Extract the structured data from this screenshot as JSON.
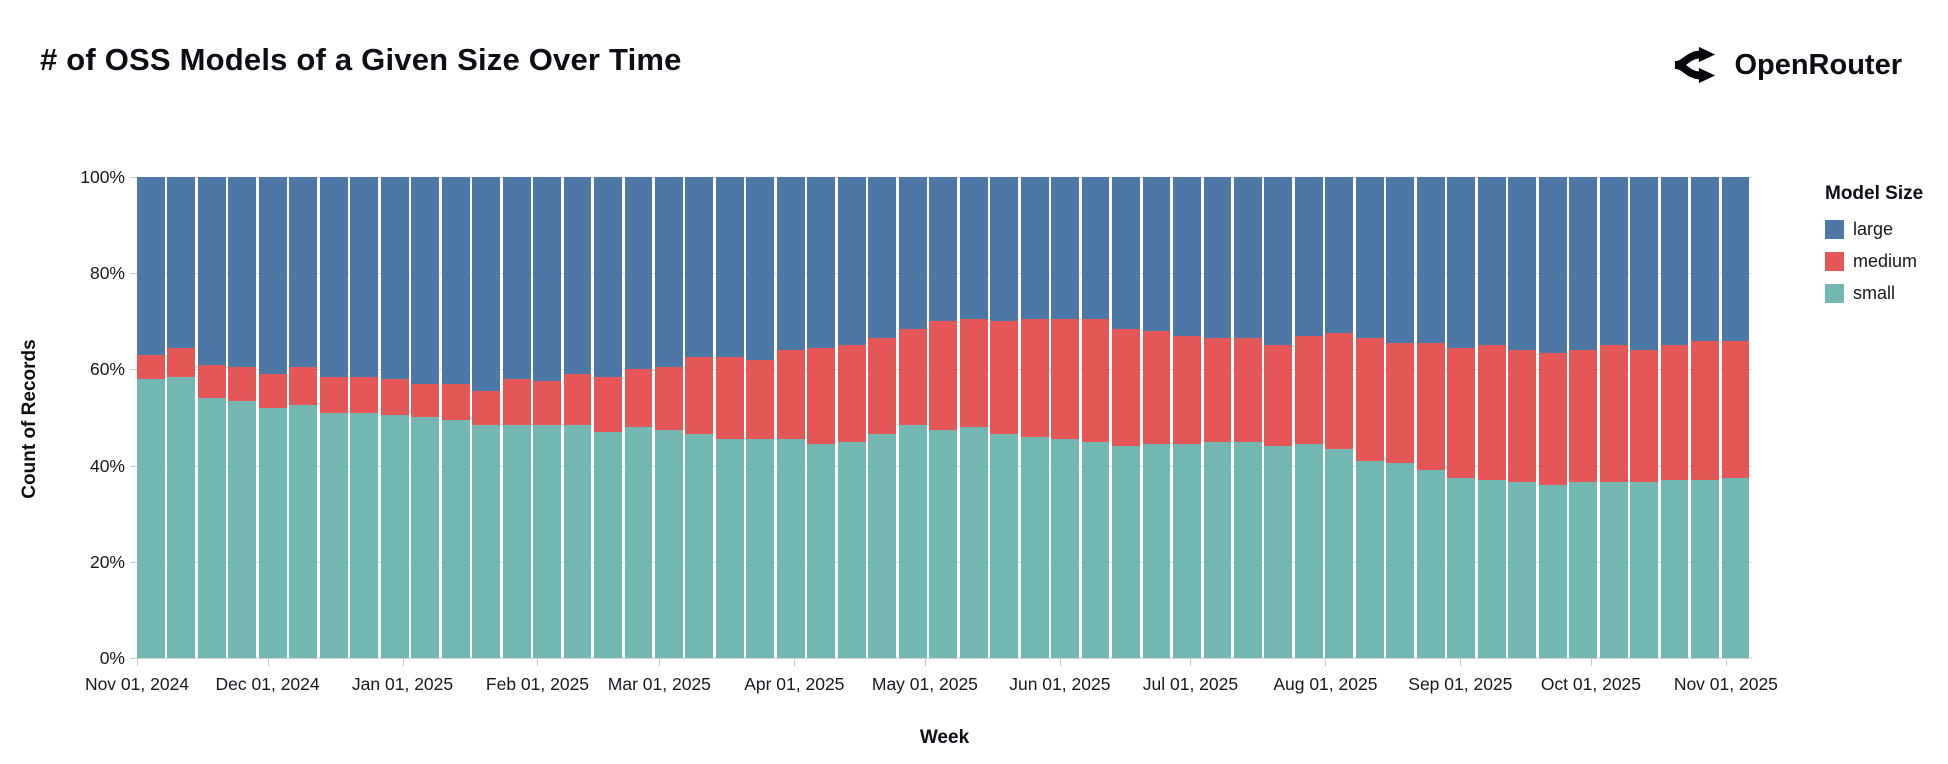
{
  "header": {
    "title": "# of OSS Models of a Given Size Over Time",
    "brand": "OpenRouter"
  },
  "chart_data": {
    "type": "bar",
    "variant": "normalized-stacked-column",
    "title": "# of OSS Models of a Given Size Over Time",
    "xlabel": "Week",
    "ylabel": "Count of Records",
    "legend_title": "Model Size",
    "legend_position": "right",
    "grid": true,
    "ylim": [
      0,
      100
    ],
    "y_unit": "%",
    "y_ticks": [
      "0%",
      "20%",
      "40%",
      "60%",
      "80%",
      "100%"
    ],
    "x_ticks": [
      {
        "label": "Nov 01, 2024",
        "day": 0
      },
      {
        "label": "Dec 01, 2024",
        "day": 30
      },
      {
        "label": "Jan 01, 2025",
        "day": 61
      },
      {
        "label": "Feb 01, 2025",
        "day": 92
      },
      {
        "label": "Mar 01, 2025",
        "day": 120
      },
      {
        "label": "Apr 01, 2025",
        "day": 151
      },
      {
        "label": "May 01, 2025",
        "day": 181
      },
      {
        "label": "Jun 01, 2025",
        "day": 212
      },
      {
        "label": "Jul 01, 2025",
        "day": 242
      },
      {
        "label": "Aug 01, 2025",
        "day": 273
      },
      {
        "label": "Sep 01, 2025",
        "day": 304
      },
      {
        "label": "Oct 01, 2025",
        "day": 334
      },
      {
        "label": "Nov 01, 2025",
        "day": 365
      }
    ],
    "legend": [
      {
        "label": "large",
        "color": "#4c78a8"
      },
      {
        "label": "medium",
        "color": "#e45756"
      },
      {
        "label": "small",
        "color": "#72b7b2"
      }
    ],
    "stack_order_bottom_to_top": [
      "small",
      "medium",
      "large"
    ],
    "weeks": [
      {
        "week_start": "2024-11-01",
        "small": 58,
        "medium": 5,
        "large": 37
      },
      {
        "week_start": "2024-11-08",
        "small": 58.5,
        "medium": 6,
        "large": 35.5
      },
      {
        "week_start": "2024-11-15",
        "small": 54,
        "medium": 7,
        "large": 39
      },
      {
        "week_start": "2024-11-22",
        "small": 53.5,
        "medium": 7,
        "large": 39.5
      },
      {
        "week_start": "2024-11-29",
        "small": 52,
        "medium": 7,
        "large": 41
      },
      {
        "week_start": "2024-12-06",
        "small": 52.5,
        "medium": 8,
        "large": 39.5
      },
      {
        "week_start": "2024-12-13",
        "small": 51,
        "medium": 7.5,
        "large": 41.5
      },
      {
        "week_start": "2024-12-20",
        "small": 51,
        "medium": 7.5,
        "large": 41.5
      },
      {
        "week_start": "2024-12-27",
        "small": 50.5,
        "medium": 7.5,
        "large": 42
      },
      {
        "week_start": "2025-01-03",
        "small": 50,
        "medium": 7,
        "large": 43
      },
      {
        "week_start": "2025-01-10",
        "small": 49.5,
        "medium": 7.5,
        "large": 43
      },
      {
        "week_start": "2025-01-17",
        "small": 48.5,
        "medium": 7,
        "large": 44.5
      },
      {
        "week_start": "2025-01-24",
        "small": 48.5,
        "medium": 9.5,
        "large": 42
      },
      {
        "week_start": "2025-01-31",
        "small": 48.5,
        "medium": 9,
        "large": 42.5
      },
      {
        "week_start": "2025-02-07",
        "small": 48.5,
        "medium": 10.5,
        "large": 41
      },
      {
        "week_start": "2025-02-14",
        "small": 47,
        "medium": 11.5,
        "large": 41.5
      },
      {
        "week_start": "2025-02-21",
        "small": 48,
        "medium": 12,
        "large": 40
      },
      {
        "week_start": "2025-02-28",
        "small": 47.5,
        "medium": 13,
        "large": 39.5
      },
      {
        "week_start": "2025-03-07",
        "small": 46.5,
        "medium": 16,
        "large": 37.5
      },
      {
        "week_start": "2025-03-14",
        "small": 45.5,
        "medium": 17,
        "large": 37.5
      },
      {
        "week_start": "2025-03-21",
        "small": 45.5,
        "medium": 16.5,
        "large": 38
      },
      {
        "week_start": "2025-03-28",
        "small": 45.5,
        "medium": 18.5,
        "large": 36
      },
      {
        "week_start": "2025-04-04",
        "small": 44.5,
        "medium": 20,
        "large": 35.5
      },
      {
        "week_start": "2025-04-11",
        "small": 45,
        "medium": 20,
        "large": 35
      },
      {
        "week_start": "2025-04-18",
        "small": 46.5,
        "medium": 20,
        "large": 33.5
      },
      {
        "week_start": "2025-04-25",
        "small": 48.5,
        "medium": 20,
        "large": 31.5
      },
      {
        "week_start": "2025-05-02",
        "small": 47.5,
        "medium": 22.5,
        "large": 30
      },
      {
        "week_start": "2025-05-09",
        "small": 48,
        "medium": 22.5,
        "large": 29.5
      },
      {
        "week_start": "2025-05-16",
        "small": 46.5,
        "medium": 23.5,
        "large": 30
      },
      {
        "week_start": "2025-05-23",
        "small": 46,
        "medium": 24.5,
        "large": 29.5
      },
      {
        "week_start": "2025-05-30",
        "small": 45.5,
        "medium": 25,
        "large": 29.5
      },
      {
        "week_start": "2025-06-06",
        "small": 45,
        "medium": 25.5,
        "large": 29.5
      },
      {
        "week_start": "2025-06-13",
        "small": 44,
        "medium": 24.5,
        "large": 31.5
      },
      {
        "week_start": "2025-06-20",
        "small": 44.5,
        "medium": 23.5,
        "large": 32
      },
      {
        "week_start": "2025-06-27",
        "small": 44.5,
        "medium": 22.5,
        "large": 33
      },
      {
        "week_start": "2025-07-04",
        "small": 45,
        "medium": 21.5,
        "large": 33.5
      },
      {
        "week_start": "2025-07-11",
        "small": 45,
        "medium": 21.5,
        "large": 33.5
      },
      {
        "week_start": "2025-07-18",
        "small": 44,
        "medium": 21,
        "large": 35
      },
      {
        "week_start": "2025-07-25",
        "small": 44.5,
        "medium": 22.5,
        "large": 33
      },
      {
        "week_start": "2025-08-01",
        "small": 43.5,
        "medium": 24,
        "large": 32.5
      },
      {
        "week_start": "2025-08-08",
        "small": 41,
        "medium": 25.5,
        "large": 33.5
      },
      {
        "week_start": "2025-08-15",
        "small": 40.5,
        "medium": 25,
        "large": 34.5
      },
      {
        "week_start": "2025-08-22",
        "small": 39,
        "medium": 26.5,
        "large": 34.5
      },
      {
        "week_start": "2025-08-29",
        "small": 37.5,
        "medium": 27,
        "large": 35.5
      },
      {
        "week_start": "2025-09-05",
        "small": 37,
        "medium": 28,
        "large": 35
      },
      {
        "week_start": "2025-09-12",
        "small": 36.5,
        "medium": 27.5,
        "large": 36
      },
      {
        "week_start": "2025-09-19",
        "small": 36,
        "medium": 27.5,
        "large": 36.5
      },
      {
        "week_start": "2025-09-26",
        "small": 36.5,
        "medium": 27.5,
        "large": 36
      },
      {
        "week_start": "2025-10-03",
        "small": 36.5,
        "medium": 28.5,
        "large": 35
      },
      {
        "week_start": "2025-10-10",
        "small": 36.5,
        "medium": 27.5,
        "large": 36
      },
      {
        "week_start": "2025-10-17",
        "small": 37,
        "medium": 28,
        "large": 35
      },
      {
        "week_start": "2025-10-24",
        "small": 37,
        "medium": 29,
        "large": 34
      },
      {
        "week_start": "2025-10-31",
        "small": 37.5,
        "medium": 28.5,
        "large": 34
      }
    ]
  }
}
